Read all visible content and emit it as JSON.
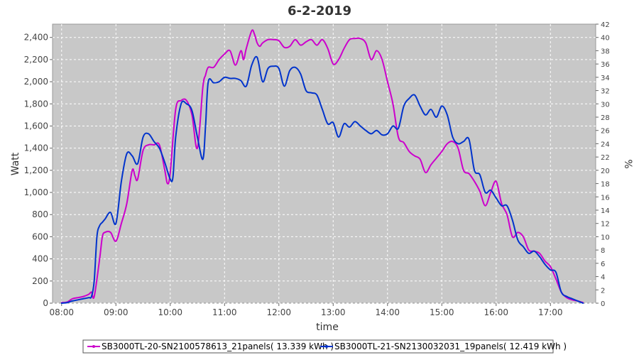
{
  "chart_data": {
    "type": "line",
    "title": "6-2-2019",
    "xlabel": "time",
    "ylabel": "Watt",
    "ylabel_right": "%",
    "xlim": [
      7.833,
      17.833
    ],
    "ylim": [
      0,
      2520
    ],
    "ylim_right": [
      0,
      42
    ],
    "grid": true,
    "legend_position": "bottom",
    "x_ticks": [
      "08:00",
      "09:00",
      "10:00",
      "11:00",
      "12:00",
      "13:00",
      "14:00",
      "15:00",
      "16:00",
      "17:00"
    ],
    "y_ticks": [
      "0",
      "200",
      "400",
      "600",
      "800",
      "1,000",
      "1,200",
      "1,400",
      "1,600",
      "1,800",
      "2,000",
      "2,200",
      "2,400"
    ],
    "y_ticks_right": [
      "0",
      "2",
      "4",
      "6",
      "8",
      "10",
      "12",
      "14",
      "16",
      "18",
      "20",
      "22",
      "24",
      "26",
      "28",
      "30",
      "32",
      "34",
      "36",
      "38",
      "40",
      "42"
    ],
    "series": [
      {
        "name": "SB3000TL-20-SN2100578613_21panels( 13.339 kWh )",
        "color": "#cc00cc",
        "x": [
          8.0,
          8.1,
          8.2,
          8.3,
          8.4,
          8.5,
          8.55,
          8.6,
          8.7,
          8.75,
          8.8,
          8.9,
          9.0,
          9.1,
          9.2,
          9.3,
          9.35,
          9.4,
          9.5,
          9.6,
          9.7,
          9.8,
          9.9,
          9.95,
          10.0,
          10.1,
          10.2,
          10.3,
          10.4,
          10.5,
          10.6,
          10.65,
          10.7,
          10.8,
          10.9,
          11.0,
          11.1,
          11.2,
          11.3,
          11.35,
          11.4,
          11.5,
          11.55,
          11.6,
          11.65,
          11.7,
          11.8,
          11.9,
          12.0,
          12.1,
          12.2,
          12.3,
          12.4,
          12.5,
          12.6,
          12.7,
          12.8,
          12.9,
          13.0,
          13.1,
          13.2,
          13.3,
          13.4,
          13.5,
          13.6,
          13.7,
          13.8,
          13.9,
          14.0,
          14.1,
          14.2,
          14.3,
          14.4,
          14.5,
          14.6,
          14.7,
          14.8,
          14.9,
          15.0,
          15.1,
          15.2,
          15.3,
          15.4,
          15.5,
          15.6,
          15.7,
          15.8,
          15.9,
          16.0,
          16.1,
          16.2,
          16.3,
          16.4,
          16.5,
          16.6,
          16.7,
          16.8,
          16.9,
          17.0,
          17.1,
          17.2,
          17.3,
          17.4,
          17.5,
          17.6
        ],
        "values": [
          5,
          10,
          40,
          50,
          60,
          80,
          100,
          60,
          400,
          600,
          640,
          640,
          560,
          720,
          900,
          1200,
          1150,
          1120,
          1380,
          1430,
          1430,
          1430,
          1200,
          1080,
          1180,
          1750,
          1830,
          1830,
          1700,
          1400,
          1950,
          2060,
          2130,
          2130,
          2200,
          2250,
          2280,
          2150,
          2280,
          2200,
          2300,
          2460,
          2430,
          2350,
          2320,
          2350,
          2380,
          2380,
          2370,
          2310,
          2320,
          2380,
          2330,
          2360,
          2380,
          2330,
          2380,
          2300,
          2160,
          2200,
          2300,
          2380,
          2390,
          2390,
          2350,
          2200,
          2280,
          2200,
          2000,
          1800,
          1500,
          1450,
          1370,
          1330,
          1300,
          1180,
          1250,
          1310,
          1370,
          1440,
          1460,
          1400,
          1200,
          1170,
          1100,
          1010,
          880,
          1000,
          1100,
          900,
          800,
          600,
          640,
          600,
          480,
          470,
          450,
          380,
          330,
          220,
          100,
          50,
          30,
          20,
          5
        ]
      },
      {
        "name": "SB3000TL-21-SN2130032031_19panels( 12.419 kWh )",
        "color": "#0033cc",
        "x": [
          8.0,
          8.1,
          8.2,
          8.3,
          8.4,
          8.5,
          8.55,
          8.6,
          8.65,
          8.7,
          8.75,
          8.8,
          8.9,
          9.0,
          9.1,
          9.2,
          9.3,
          9.4,
          9.5,
          9.6,
          9.7,
          9.8,
          9.9,
          10.0,
          10.05,
          10.1,
          10.2,
          10.3,
          10.4,
          10.5,
          10.6,
          10.65,
          10.7,
          10.8,
          10.9,
          11.0,
          11.1,
          11.2,
          11.3,
          11.4,
          11.5,
          11.6,
          11.7,
          11.8,
          11.9,
          12.0,
          12.1,
          12.2,
          12.3,
          12.4,
          12.5,
          12.6,
          12.7,
          12.8,
          12.9,
          13.0,
          13.1,
          13.2,
          13.3,
          13.4,
          13.5,
          13.6,
          13.7,
          13.8,
          13.9,
          14.0,
          14.1,
          14.2,
          14.3,
          14.4,
          14.5,
          14.6,
          14.7,
          14.8,
          14.9,
          15.0,
          15.1,
          15.2,
          15.3,
          15.4,
          15.5,
          15.6,
          15.7,
          15.8,
          15.9,
          16.0,
          16.1,
          16.2,
          16.3,
          16.4,
          16.5,
          16.6,
          16.7,
          16.8,
          16.9,
          17.0,
          17.1,
          17.2,
          17.3,
          17.4,
          17.5,
          17.6
        ],
        "values": [
          0,
          5,
          20,
          30,
          40,
          50,
          60,
          200,
          600,
          700,
          730,
          760,
          820,
          720,
          1100,
          1350,
          1330,
          1260,
          1500,
          1530,
          1460,
          1400,
          1270,
          1120,
          1140,
          1500,
          1800,
          1800,
          1740,
          1500,
          1300,
          1600,
          2000,
          1990,
          2000,
          2040,
          2030,
          2030,
          2010,
          1960,
          2150,
          2220,
          2000,
          2120,
          2140,
          2120,
          1960,
          2100,
          2130,
          2070,
          1920,
          1900,
          1880,
          1750,
          1620,
          1630,
          1500,
          1620,
          1590,
          1640,
          1600,
          1560,
          1530,
          1560,
          1520,
          1530,
          1600,
          1580,
          1780,
          1850,
          1880,
          1780,
          1700,
          1750,
          1680,
          1780,
          1700,
          1500,
          1440,
          1460,
          1480,
          1200,
          1160,
          1000,
          1020,
          950,
          880,
          880,
          750,
          570,
          510,
          450,
          470,
          420,
          350,
          300,
          280,
          100,
          60,
          40,
          20,
          0
        ]
      }
    ]
  }
}
